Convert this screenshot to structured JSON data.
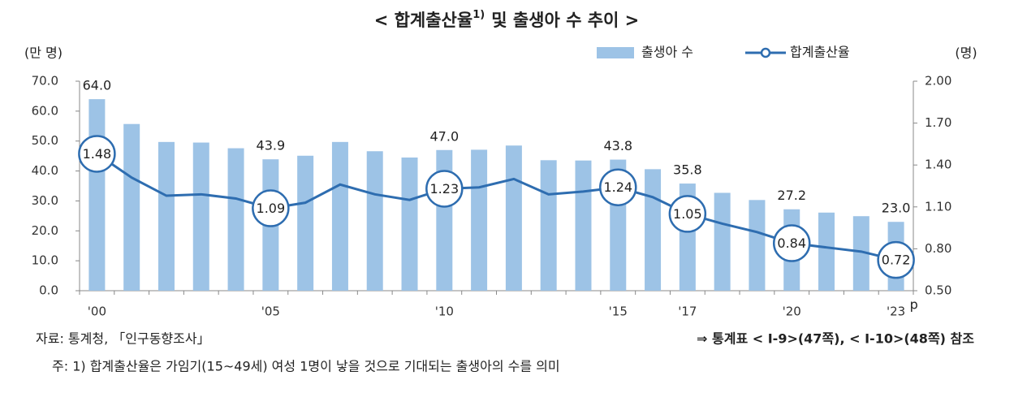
{
  "chart_data": {
    "type": "bar-line",
    "title": "< 합계출산율",
    "title_superscript": "1)",
    "title_rest": "및 출생아 수 추이 >",
    "y_unit": "(만 명)",
    "y2_unit": "(명)",
    "categories": [
      "'00",
      null,
      null,
      null,
      null,
      "'05",
      null,
      null,
      null,
      null,
      "'10",
      null,
      null,
      null,
      null,
      "'15",
      null,
      "'17",
      null,
      null,
      "'20",
      null,
      null,
      "'23"
    ],
    "last_category_superscript": "p",
    "series": [
      {
        "name": "출생아 수",
        "type": "bar",
        "color": "#9dc3e6",
        "values": [
          64.0,
          55.7,
          49.7,
          49.5,
          47.6,
          43.9,
          45.1,
          49.7,
          46.6,
          44.5,
          47.0,
          47.1,
          48.5,
          43.6,
          43.5,
          43.8,
          40.6,
          35.8,
          32.7,
          30.3,
          27.2,
          26.1,
          24.9,
          23.0
        ],
        "value_labels": [
          "64.0",
          null,
          null,
          null,
          null,
          "43.9",
          null,
          null,
          null,
          null,
          "47.0",
          null,
          null,
          null,
          null,
          "43.8",
          null,
          "35.8",
          null,
          null,
          "27.2",
          null,
          null,
          "23.0"
        ]
      },
      {
        "name": "합계출산율",
        "type": "line",
        "axis": "y2",
        "color": "#2e6db0",
        "values": [
          1.48,
          1.31,
          1.18,
          1.19,
          1.16,
          1.09,
          1.13,
          1.26,
          1.19,
          1.15,
          1.23,
          1.24,
          1.3,
          1.19,
          1.21,
          1.24,
          1.17,
          1.05,
          0.98,
          0.92,
          0.84,
          0.81,
          0.78,
          0.72
        ],
        "value_labels": [
          "1.48",
          null,
          null,
          null,
          null,
          "1.09",
          null,
          null,
          null,
          null,
          "1.23",
          null,
          null,
          null,
          null,
          "1.24",
          null,
          "1.05",
          null,
          null,
          "0.84",
          null,
          null,
          "0.72"
        ]
      }
    ],
    "ylim": [
      0,
      70
    ],
    "yticks": [
      {
        "value": 0,
        "label": "0.0"
      },
      {
        "value": 10,
        "label": "10.0"
      },
      {
        "value": 20,
        "label": "20.0"
      },
      {
        "value": 30,
        "label": "30.0"
      },
      {
        "value": 40,
        "label": "40.0"
      },
      {
        "value": 50,
        "label": "50.0"
      },
      {
        "value": 60,
        "label": "60.0"
      },
      {
        "value": 70,
        "label": "70.0"
      }
    ],
    "y2lim": [
      0.5,
      2.0
    ],
    "y2ticks": [
      {
        "value": 0.5,
        "label": "0.50"
      },
      {
        "value": 0.8,
        "label": "0.80"
      },
      {
        "value": 1.1,
        "label": "1.10"
      },
      {
        "value": 1.4,
        "label": "1.40"
      },
      {
        "value": 1.7,
        "label": "1.70"
      },
      {
        "value": 2.0,
        "label": "2.00"
      }
    ],
    "source": "자료: 통계청, 「인구동향조사」",
    "reference": "⇒ 통계표 < Ⅰ-9>(47쪽), < Ⅰ-10>(48쪽) 참조",
    "note": "주: 1) 합계출산율은 가임기(15~49세) 여성 1명이 낳을 것으로 기대되는 출생아의 수를 의미"
  }
}
